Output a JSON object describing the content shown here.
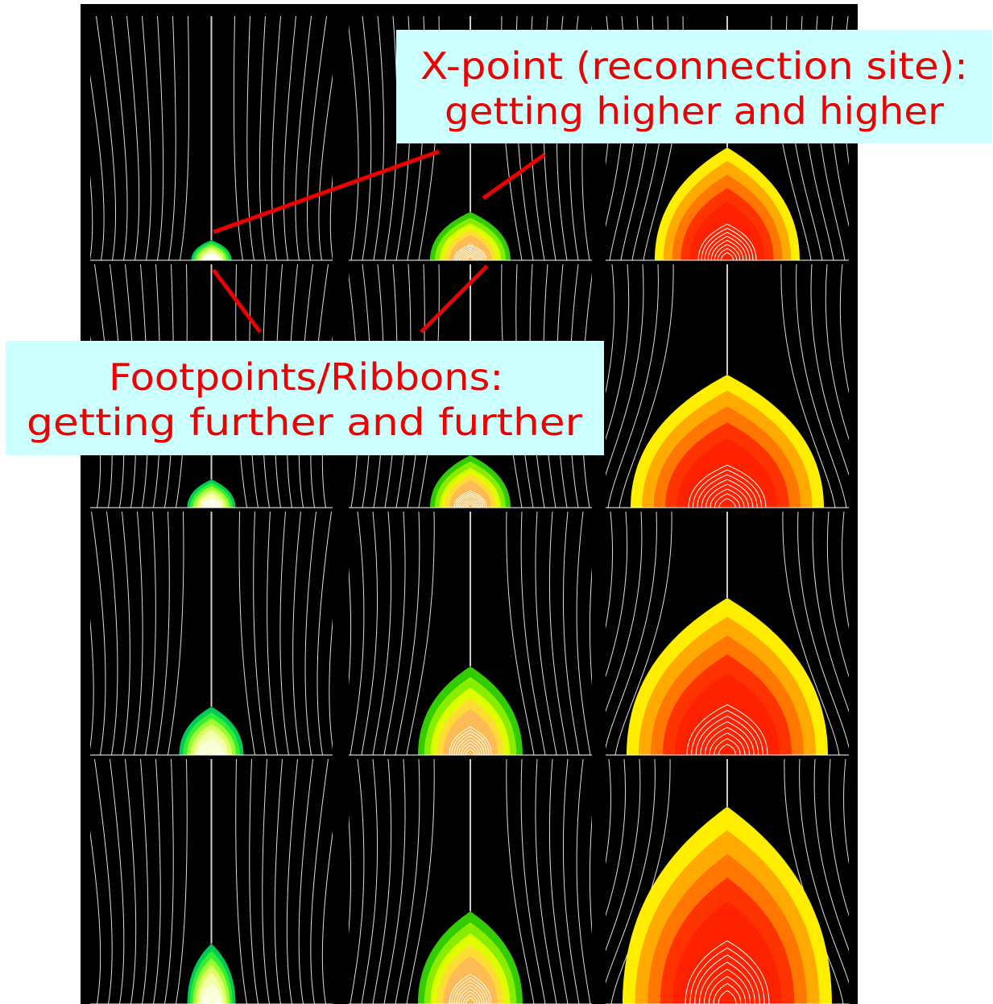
{
  "annotations": {
    "x_point": {
      "lines": [
        "X-point (reconnection site):",
        "getting higher and higher"
      ]
    },
    "footpoints": {
      "lines": [
        "Footpoints/Ribbons:",
        "getting further and further"
      ]
    }
  }
}
